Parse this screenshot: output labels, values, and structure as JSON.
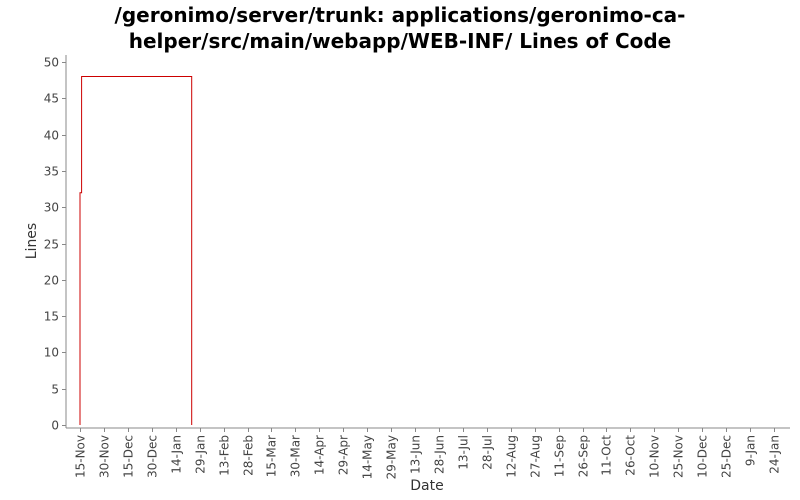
{
  "chart_data": {
    "type": "line",
    "title_lines": [
      "/geronimo/server/trunk: applications/geronimo-ca-",
      "helper/src/main/webapp/WEB-INF/ Lines of Code"
    ],
    "xlabel": "Date",
    "ylabel": "Lines",
    "ylim": [
      0,
      50
    ],
    "yticks": [
      0,
      5,
      10,
      15,
      20,
      25,
      30,
      35,
      40,
      45,
      50
    ],
    "xticks": [
      "15-Nov",
      "30-Nov",
      "15-Dec",
      "30-Dec",
      "14-Jan",
      "29-Jan",
      "13-Feb",
      "28-Feb",
      "15-Mar",
      "30-Mar",
      "14-Apr",
      "29-Apr",
      "14-May",
      "29-May",
      "13-Jun",
      "28-Jun",
      "13-Jul",
      "28-Jul",
      "12-Aug",
      "27-Aug",
      "11-Sep",
      "26-Sep",
      "11-Oct",
      "26-Oct",
      "10-Nov",
      "25-Nov",
      "10-Dec",
      "25-Dec",
      "9-Jan",
      "24-Jan"
    ],
    "series": [
      {
        "color": "#cc0000",
        "points": [
          {
            "x": "15-Nov",
            "y": 0
          },
          {
            "x": "15-Nov",
            "y": 32
          },
          {
            "x": "16-Nov",
            "y": 32
          },
          {
            "x": "16-Nov",
            "y": 48
          },
          {
            "x": "24-Jan",
            "y": 48
          },
          {
            "x": "24-Jan",
            "y": 0
          }
        ]
      }
    ],
    "grid": false
  }
}
